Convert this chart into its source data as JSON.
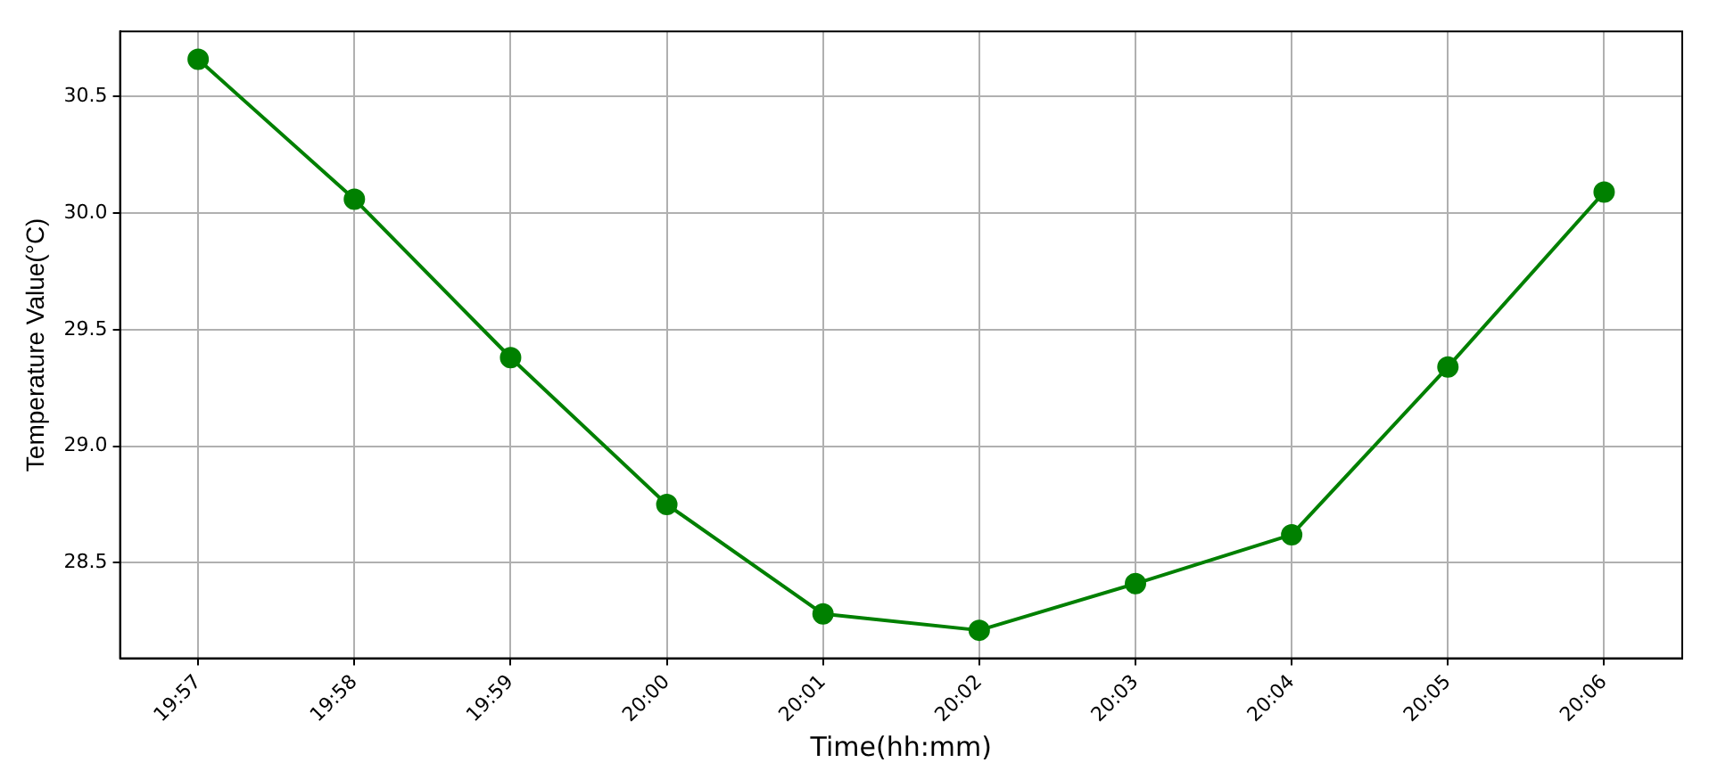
{
  "chart_data": {
    "type": "line",
    "xlabel": "Time(hh:mm)",
    "ylabel": "Temperature Value(°C)",
    "categories": [
      "19:57",
      "19:58",
      "19:59",
      "20:00",
      "20:01",
      "20:02",
      "20:03",
      "20:04",
      "20:05",
      "20:06"
    ],
    "series": [
      {
        "color": "#008000",
        "values": [
          30.66,
          30.06,
          29.38,
          28.75,
          28.28,
          28.21,
          28.41,
          28.62,
          29.34,
          30.09
        ]
      }
    ],
    "ylim": [
      28.09,
      30.78
    ],
    "yticks": [
      28.5,
      {
        "value": 29,
        "label": "29.0"
      },
      29.5,
      {
        "value": 30,
        "label": "30.0"
      },
      30.5
    ],
    "grid": true,
    "legend": false,
    "marker": "circle",
    "line_style": "solid"
  }
}
